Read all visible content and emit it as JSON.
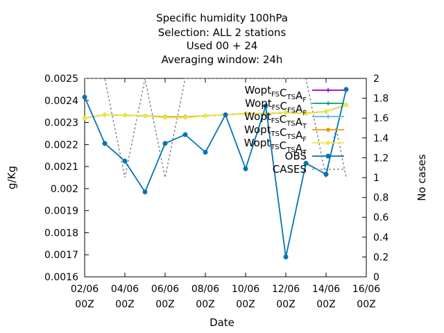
{
  "chart_data": {
    "type": "line",
    "title_lines": [
      "Specific humidity 100hPa",
      "Selection: ALL      2 stations",
      "Used  00 + 24",
      "Averaging window: 24h"
    ],
    "xlabel": "Date",
    "ylabel": "g/Kg",
    "y2label": "No cases",
    "x_ticks": [
      {
        "day": 2,
        "line1": "02/06",
        "line2": "00Z"
      },
      {
        "day": 4,
        "line1": "04/06",
        "line2": "00Z"
      },
      {
        "day": 6,
        "line1": "06/06",
        "line2": "00Z"
      },
      {
        "day": 8,
        "line1": "08/06",
        "line2": "00Z"
      },
      {
        "day": 10,
        "line1": "10/06",
        "line2": "00Z"
      },
      {
        "day": 12,
        "line1": "12/06",
        "line2": "00Z"
      },
      {
        "day": 14,
        "line1": "14/06",
        "line2": "00Z"
      },
      {
        "day": 16,
        "line1": "16/06",
        "line2": "00Z"
      }
    ],
    "xlim": [
      2,
      16
    ],
    "ylim": [
      0.0016,
      0.0025
    ],
    "y_ticks": [
      "0.0016",
      "0.0017",
      "0.0018",
      "0.0019",
      "0.002",
      "0.0021",
      "0.0022",
      "0.0023",
      "0.0024",
      "0.0025"
    ],
    "y2lim": [
      0,
      2
    ],
    "y2_ticks": [
      "0",
      "0.2",
      "0.4",
      "0.6",
      "0.8",
      "1",
      "1.2",
      "1.4",
      "1.6",
      "1.8",
      "2"
    ],
    "grid": false,
    "legend_position": "top-right",
    "series": [
      {
        "legend": [
          [
            "Wopt",
            "FS"
          ],
          [
            "C",
            "TS"
          ],
          [
            "A",
            "F"
          ]
        ],
        "color": "#9400d3",
        "marker": "plus",
        "axis": "y",
        "x": [
          2,
          3,
          4,
          5,
          6,
          7,
          8,
          9,
          10,
          11,
          12,
          13,
          14,
          15
        ],
        "y": [
          0.00232,
          0.002335,
          0.002333,
          0.00233,
          0.002325,
          0.002325,
          0.00233,
          0.002335,
          0.00234,
          0.00234,
          0.002345,
          0.002342,
          0.00235,
          0.00238
        ]
      },
      {
        "legend": [
          [
            "Wopt",
            "FS"
          ],
          [
            "C",
            "FS"
          ],
          [
            "A",
            "F"
          ]
        ],
        "color": "#009e73",
        "marker": "plus",
        "axis": "y",
        "x": [
          2,
          3,
          4,
          5,
          6,
          7,
          8,
          9,
          10,
          11,
          12,
          13,
          14,
          15
        ],
        "y": [
          0.00232,
          0.002335,
          0.002333,
          0.00233,
          0.002325,
          0.002325,
          0.00233,
          0.002335,
          0.00234,
          0.00234,
          0.002345,
          0.002342,
          0.00235,
          0.00238
        ]
      },
      {
        "legend": [
          [
            "Wopt",
            "FS"
          ],
          [
            "C",
            "TS"
          ],
          [
            "A",
            "T"
          ]
        ],
        "color": "#56b4e9",
        "marker": "plus",
        "axis": "y",
        "x": [
          2,
          3,
          4,
          5,
          6,
          7,
          8,
          9,
          10,
          11,
          12,
          13,
          14,
          15
        ],
        "y": [
          0.00232,
          0.002335,
          0.002333,
          0.00233,
          0.002325,
          0.002325,
          0.00233,
          0.002335,
          0.00234,
          0.00234,
          0.002345,
          0.002342,
          0.00235,
          0.00238
        ]
      },
      {
        "legend": [
          [
            "Wopt",
            "TS"
          ],
          [
            "C",
            "TS"
          ],
          [
            "A",
            "F"
          ]
        ],
        "color": "#e69f00",
        "marker": "circle",
        "axis": "y",
        "x": [
          2,
          3,
          4,
          5,
          6,
          7,
          8,
          9,
          10,
          11,
          12,
          13,
          14,
          15
        ],
        "y": [
          0.00232,
          0.002335,
          0.002333,
          0.00233,
          0.002325,
          0.002325,
          0.00233,
          0.002335,
          0.00234,
          0.00234,
          0.002345,
          0.002342,
          0.00235,
          0.00238
        ]
      },
      {
        "legend": [
          [
            "Wopt",
            "TS"
          ],
          [
            "C",
            "TS"
          ],
          [
            "A",
            "T"
          ]
        ],
        "color": "#f0e442",
        "marker": "circle",
        "axis": "y",
        "x": [
          2,
          3,
          4,
          5,
          6,
          7,
          8,
          9,
          10,
          11,
          12,
          13,
          14,
          15
        ],
        "y": [
          0.00232,
          0.002335,
          0.002333,
          0.00233,
          0.002322,
          0.002322,
          0.00233,
          0.002335,
          0.00234,
          0.00234,
          0.002345,
          0.002342,
          0.00235,
          0.00238
        ]
      },
      {
        "legend": [
          [
            "OBS",
            ""
          ]
        ],
        "color": "#0072b2",
        "marker": "star",
        "axis": "y",
        "x": [
          2,
          3,
          4,
          5,
          6,
          7,
          8,
          9,
          10,
          11,
          12,
          13,
          14,
          15
        ],
        "y": [
          0.002415,
          0.002205,
          0.002125,
          0.001985,
          0.002205,
          0.002245,
          0.002165,
          0.002335,
          0.00209,
          0.002375,
          0.00169,
          0.002115,
          0.002065,
          0.00245
        ]
      },
      {
        "legend": [
          [
            "CASES",
            ""
          ]
        ],
        "color": "#888888",
        "marker": "none",
        "dash": true,
        "axis": "y2",
        "x": [
          2,
          2.5,
          3,
          3.5,
          4,
          4.5,
          5,
          5.5,
          6,
          6.5,
          7,
          7.5,
          8,
          8.5,
          9,
          9.5,
          10,
          10.5,
          11,
          11.5,
          12,
          12.5,
          13,
          13.5,
          14,
          14.5,
          15
        ],
        "y": [
          2,
          2,
          2,
          1.5,
          1,
          1.5,
          2,
          1.5,
          1,
          1.5,
          2,
          2,
          2,
          2,
          2,
          2,
          2,
          2,
          2,
          2,
          2,
          2,
          2,
          1.5,
          1,
          1.5,
          1
        ]
      }
    ]
  }
}
